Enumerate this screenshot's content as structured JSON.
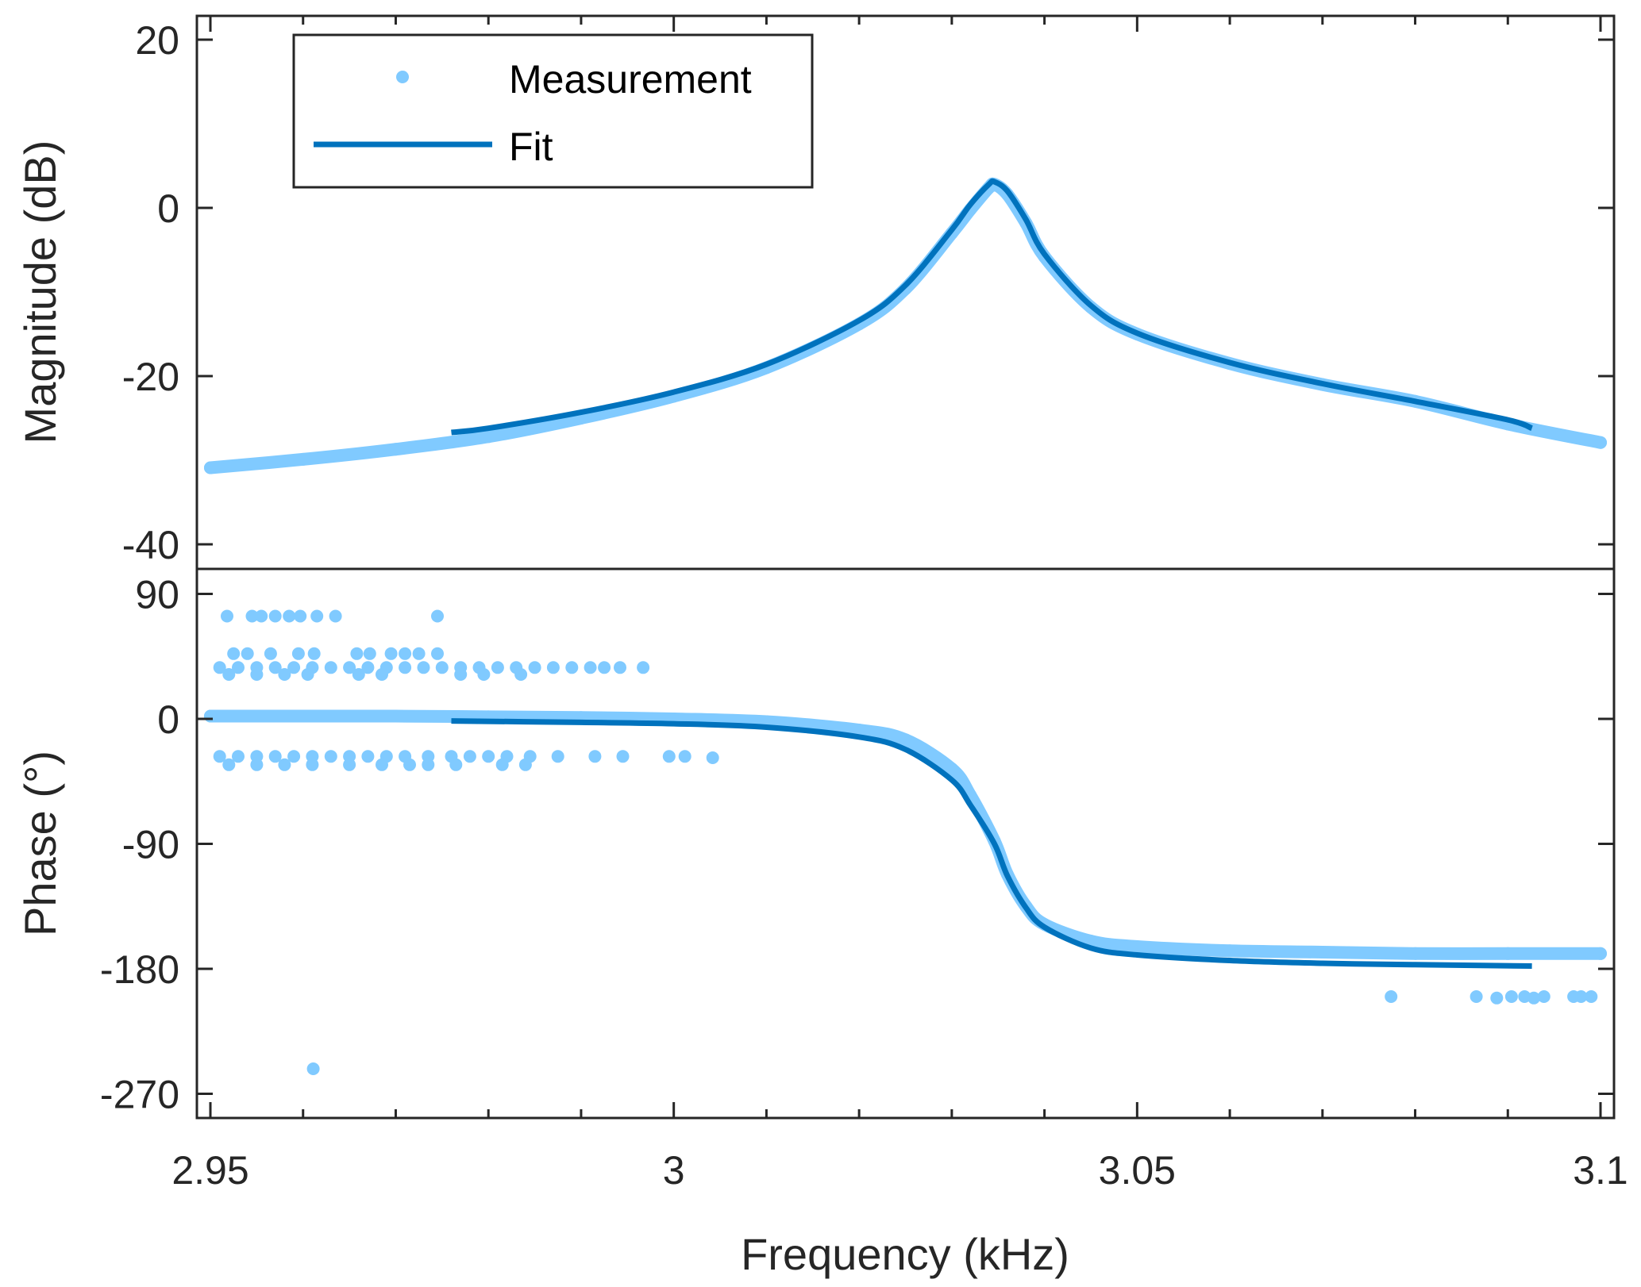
{
  "chart_data": {
    "type": "line",
    "layout": "two stacked panels sharing x-axis",
    "xlabel": "Frequency (kHz)",
    "xlim": [
      2.95,
      3.1
    ],
    "xticks": [
      2.95,
      3,
      3.05,
      3.1
    ],
    "xtick_labels": [
      "2.95",
      "3",
      "3.05",
      "3.1"
    ],
    "x_minor_step": 0.01,
    "legend": {
      "placement": "top-left",
      "entries": [
        {
          "label": "Measurement",
          "style": "marker",
          "color": "#80CAFF"
        },
        {
          "label": "Fit",
          "style": "line",
          "color": "#0072BD"
        }
      ]
    },
    "colors": {
      "measurement": "#80CAFF",
      "fit": "#0072BD",
      "axis": "#262626",
      "background": "#ffffff"
    },
    "panels": [
      {
        "name": "magnitude",
        "ylabel": "Magnitude (dB)",
        "ylim": [
          -43,
          23
        ],
        "yticks": [
          20,
          0,
          -20,
          -40
        ],
        "ytick_labels": [
          "20",
          "0",
          "-20",
          "-40"
        ],
        "series": [
          {
            "name": "Measurement",
            "type": "scatter-dense",
            "x": [
              2.95,
              2.96,
              2.97,
              2.98,
              2.99,
              3.0,
              3.01,
              3.02,
              3.025,
              3.03,
              3.032,
              3.034,
              3.0346,
              3.036,
              3.038,
              3.04,
              3.045,
              3.05,
              3.06,
              3.07,
              3.08,
              3.09,
              3.1
            ],
            "y": [
              -30.9,
              -29.9,
              -28.7,
              -27.2,
              -25.0,
              -22.4,
              -19.0,
              -13.8,
              -9.6,
              -3.0,
              -0.2,
              2.4,
              2.8,
              1.6,
              -1.8,
              -5.8,
              -11.8,
              -15.0,
              -18.5,
              -21.0,
              -23.0,
              -25.7,
              -27.9
            ]
          },
          {
            "name": "Fit",
            "type": "line",
            "x": [
              2.976,
              2.98,
              2.99,
              3.0,
              3.01,
              3.02,
              3.025,
              3.03,
              3.032,
              3.034,
              3.0346,
              3.036,
              3.038,
              3.04,
              3.045,
              3.05,
              3.06,
              3.07,
              3.08,
              3.09,
              3.0926
            ],
            "y": [
              -26.7,
              -26.2,
              -24.3,
              -21.9,
              -18.6,
              -13.4,
              -9.2,
              -2.6,
              0.4,
              2.8,
              3.1,
              2.0,
              -1.4,
              -5.5,
              -11.6,
              -14.9,
              -18.4,
              -20.9,
              -23.0,
              -25.2,
              -26.2
            ]
          }
        ]
      },
      {
        "name": "phase",
        "ylabel": "Phase (°)",
        "ylim": [
          -288,
          107
        ],
        "yticks": [
          90,
          0,
          -90,
          -180,
          -270
        ],
        "ytick_labels": [
          "90",
          "0",
          "-90",
          "-180",
          "-270"
        ],
        "series": [
          {
            "name": "Measurement",
            "type": "scatter-dense",
            "x": [
              2.95,
              2.96,
              2.97,
              2.98,
              2.99,
              3.0,
              3.01,
              3.02,
              3.025,
              3.03,
              3.032,
              3.0346,
              3.036,
              3.038,
              3.04,
              3.045,
              3.05,
              3.06,
              3.07,
              3.08,
              3.09,
              3.1
            ],
            "y": [
              2,
              2,
              2,
              1.5,
              1,
              0,
              -2,
              -8,
              -15,
              -36,
              -55,
              -88,
              -112,
              -135,
              -148,
              -160,
              -164,
              -167,
              -168,
              -169,
              -169,
              -169
            ]
          },
          {
            "name": "Fit",
            "type": "line",
            "x": [
              2.976,
              2.99,
              3.0,
              3.01,
              3.02,
              3.025,
              3.03,
              3.032,
              3.0346,
              3.036,
              3.038,
              3.04,
              3.045,
              3.05,
              3.06,
              3.07,
              3.08,
              3.0926
            ],
            "y": [
              -1.5,
              -2.5,
              -3.5,
              -6,
              -13,
              -22,
              -44,
              -62,
              -90,
              -113,
              -136,
              -150,
              -165,
              -170,
              -174,
              -176,
              -177,
              -178
            ]
          },
          {
            "name": "Measurement outliers",
            "type": "scatter",
            "points": [
              [
                2.9518,
                74
              ],
              [
                2.9545,
                74
              ],
              [
                2.9555,
                74
              ],
              [
                2.957,
                74
              ],
              [
                2.9585,
                74
              ],
              [
                2.9597,
                74
              ],
              [
                2.9615,
                74
              ],
              [
                2.9635,
                74
              ],
              [
                2.9745,
                74
              ],
              [
                2.9525,
                47
              ],
              [
                2.954,
                47
              ],
              [
                2.9565,
                47
              ],
              [
                2.9595,
                47
              ],
              [
                2.9612,
                47
              ],
              [
                2.9658,
                47
              ],
              [
                2.9672,
                47
              ],
              [
                2.9695,
                47
              ],
              [
                2.971,
                47
              ],
              [
                2.9725,
                47
              ],
              [
                2.9745,
                47
              ],
              [
                2.951,
                37
              ],
              [
                2.953,
                37
              ],
              [
                2.955,
                37
              ],
              [
                2.957,
                37
              ],
              [
                2.959,
                37
              ],
              [
                2.961,
                37
              ],
              [
                2.963,
                37
              ],
              [
                2.965,
                37
              ],
              [
                2.967,
                37
              ],
              [
                2.969,
                37
              ],
              [
                2.971,
                37
              ],
              [
                2.973,
                37
              ],
              [
                2.975,
                37
              ],
              [
                2.977,
                37
              ],
              [
                2.979,
                37
              ],
              [
                2.981,
                37
              ],
              [
                2.983,
                37
              ],
              [
                2.985,
                37
              ],
              [
                2.987,
                37
              ],
              [
                2.989,
                37
              ],
              [
                2.991,
                37
              ],
              [
                2.9925,
                37
              ],
              [
                2.9942,
                37
              ],
              [
                2.9967,
                37
              ],
              [
                2.952,
                32
              ],
              [
                2.955,
                32
              ],
              [
                2.958,
                32
              ],
              [
                2.9605,
                32
              ],
              [
                2.966,
                32
              ],
              [
                2.9685,
                32
              ],
              [
                2.977,
                32
              ],
              [
                2.9795,
                32
              ],
              [
                2.9835,
                32
              ],
              [
                2.951,
                -27
              ],
              [
                2.953,
                -27
              ],
              [
                2.955,
                -27
              ],
              [
                2.957,
                -27
              ],
              [
                2.959,
                -27
              ],
              [
                2.961,
                -27
              ],
              [
                2.963,
                -27
              ],
              [
                2.965,
                -27
              ],
              [
                2.967,
                -27
              ],
              [
                2.969,
                -27
              ],
              [
                2.971,
                -27
              ],
              [
                2.9735,
                -27
              ],
              [
                2.976,
                -27
              ],
              [
                2.978,
                -27
              ],
              [
                2.98,
                -27
              ],
              [
                2.982,
                -27
              ],
              [
                2.9845,
                -27
              ],
              [
                2.9875,
                -27
              ],
              [
                2.9915,
                -27
              ],
              [
                2.9945,
                -27
              ],
              [
                2.9995,
                -27
              ],
              [
                3.0012,
                -27
              ],
              [
                3.0042,
                -28
              ],
              [
                2.952,
                -33
              ],
              [
                2.955,
                -33
              ],
              [
                2.958,
                -33
              ],
              [
                2.961,
                -33
              ],
              [
                2.965,
                -33
              ],
              [
                2.9685,
                -33
              ],
              [
                2.9715,
                -33
              ],
              [
                2.9735,
                -33
              ],
              [
                2.9765,
                -33
              ],
              [
                2.9815,
                -33
              ],
              [
                2.984,
                -33
              ],
              [
                2.9611,
                -252
              ],
              [
                3.0774,
                -200
              ],
              [
                3.0866,
                -200
              ],
              [
                3.0888,
                -201
              ],
              [
                3.0904,
                -200
              ],
              [
                3.0918,
                -200
              ],
              [
                3.0928,
                -201
              ],
              [
                3.0939,
                -200
              ],
              [
                3.0971,
                -200
              ],
              [
                3.0979,
                -200
              ],
              [
                3.099,
                -200
              ]
            ]
          }
        ]
      }
    ]
  }
}
